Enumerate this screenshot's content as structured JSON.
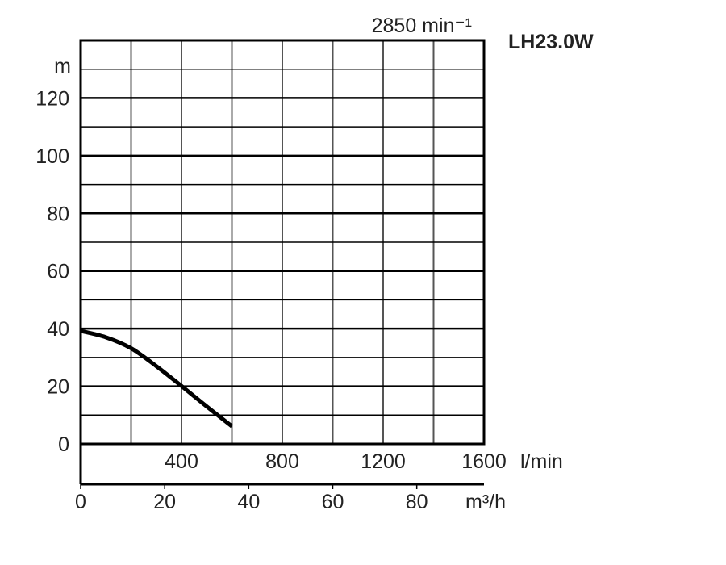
{
  "chart_data": {
    "type": "line",
    "title": "LH23.0W",
    "speed_label": "2850 min⁻¹",
    "ylabel": "m",
    "xlabel": "l/min",
    "x2label": "m³/h",
    "xlim": [
      0,
      1600
    ],
    "ylim": [
      0,
      140
    ],
    "x_ticks": [
      400,
      800,
      1200,
      1600
    ],
    "x_tick_labels": [
      "400",
      "800",
      "1200",
      "1600"
    ],
    "x2_ticks": [
      0,
      20,
      40,
      60,
      80
    ],
    "x2_tick_labels": [
      "0",
      "20",
      "40",
      "60",
      "80"
    ],
    "y_ticks": [
      0,
      20,
      40,
      60,
      80,
      100,
      120
    ],
    "y_tick_labels": [
      "0",
      "20",
      "40",
      "60",
      "80",
      "100",
      "120"
    ],
    "grid": true,
    "series": [
      {
        "x": [
          0,
          100,
          200,
          300,
          400,
          500,
          600
        ],
        "y": [
          39.2,
          37,
          33.2,
          27,
          20.1,
          13,
          6.1
        ]
      }
    ],
    "colors": {
      "curve": "#000000",
      "grid": "#555555",
      "frame": "#000000"
    }
  }
}
